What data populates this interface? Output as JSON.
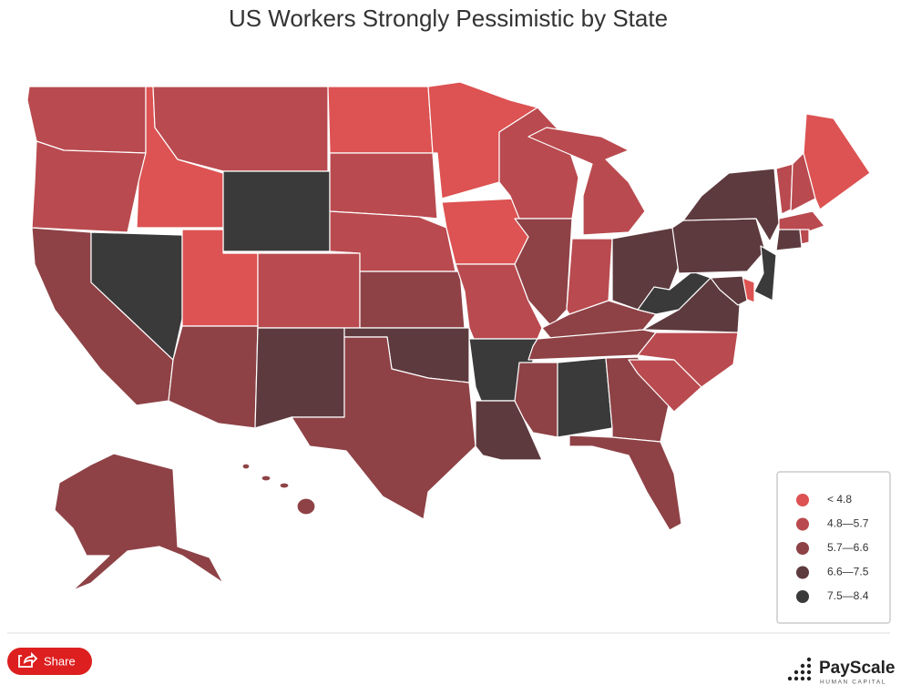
{
  "title": "US Workers Strongly Pessimistic by State",
  "legend": [
    {
      "label": "< 4.8",
      "color": "#dd5252"
    },
    {
      "label": "4.8—5.7",
      "color": "#b94a4f"
    },
    {
      "label": "5.7—6.6",
      "color": "#8e4246"
    },
    {
      "label": "6.6—7.5",
      "color": "#5d3a3e"
    },
    {
      "label": "7.5—8.4",
      "color": "#3a3a3a"
    }
  ],
  "share": "Share",
  "brand": {
    "name": "PayScale",
    "tagline": "HUMAN CAPITAL"
  }
}
